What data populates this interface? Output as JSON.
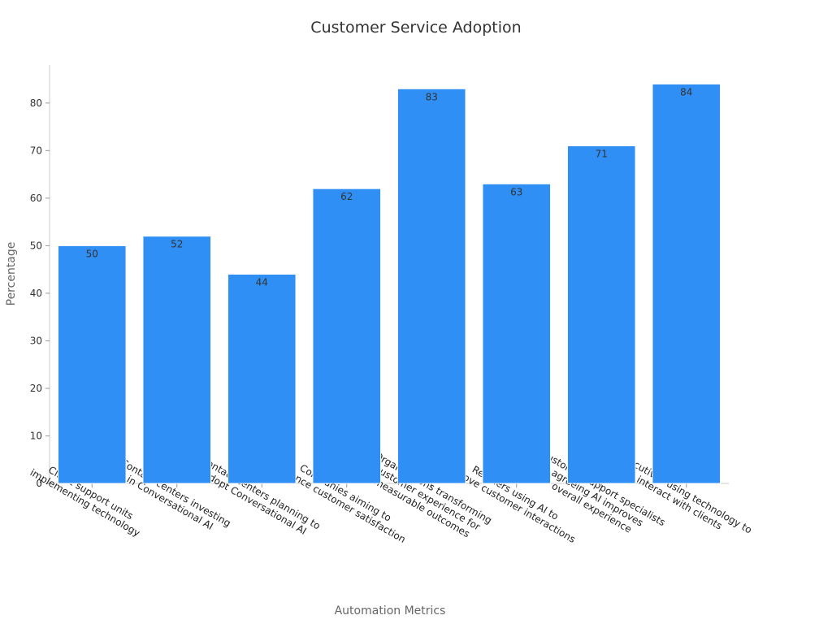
{
  "chart_data": {
    "type": "bar",
    "title": "Customer Service Adoption",
    "xlabel": "Automation Metrics",
    "ylabel": "Percentage",
    "categories": [
      [
        "Client support units",
        "implementing technology"
      ],
      [
        "Contact centers investing",
        "in Conversational AI"
      ],
      [
        "Contact centers planning to",
        "adopt Conversational AI"
      ],
      [
        "Companies aiming to",
        "enhance customer satisfaction"
      ],
      [
        "Organizations transforming",
        "customer experience for",
        "measurable outcomes"
      ],
      [
        "Retailers using AI to",
        "improve customer interactions"
      ],
      [
        "Customer support specialists",
        "agreeing AI improves",
        "overall experience"
      ],
      [
        "Executives using technology to",
        "interact with clients"
      ]
    ],
    "values": [
      50,
      52,
      44,
      62,
      83,
      63,
      71,
      84
    ],
    "ylim": [
      0,
      88
    ],
    "yticks": [
      0,
      10,
      20,
      30,
      40,
      50,
      60,
      70,
      80
    ],
    "bar_color": "#2f8ff5",
    "grid": false,
    "legend": "none"
  }
}
